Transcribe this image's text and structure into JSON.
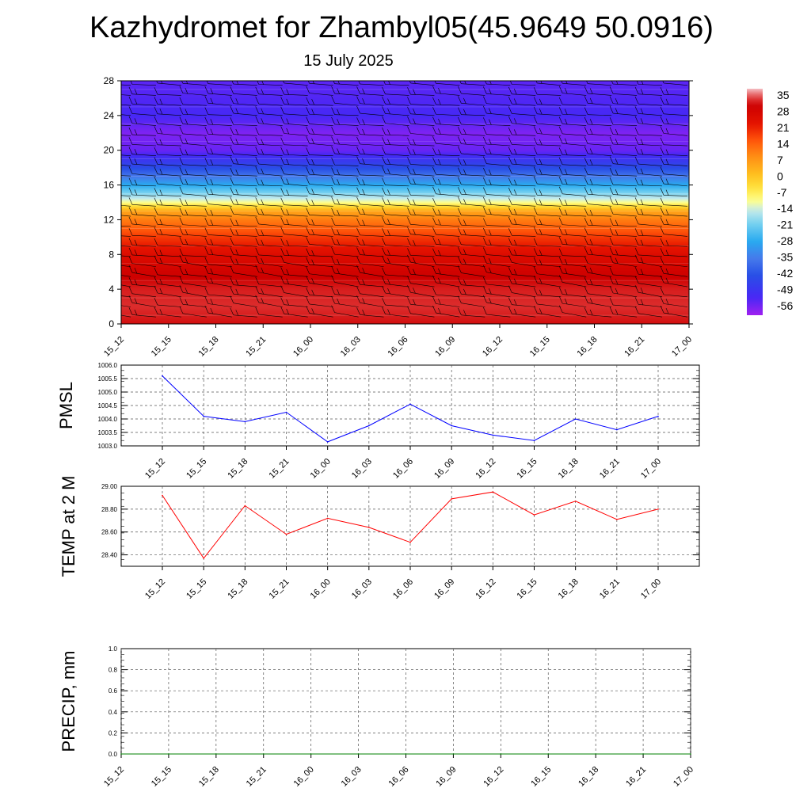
{
  "title": "Kazhydromet for Zhambyl05(45.9649 50.0916)",
  "subtitle": "15 July 2025",
  "chart_data": [
    {
      "type": "heatmap",
      "name": "temperature-cross-section",
      "x_categories": [
        "15_12",
        "15_15",
        "15_18",
        "15_21",
        "16_00",
        "16_03",
        "16_06",
        "16_09",
        "16_12",
        "16_15",
        "16_18",
        "16_21",
        "17_00"
      ],
      "y_ticks": [
        0,
        4,
        8,
        12,
        16,
        20,
        24,
        28
      ],
      "ylim": [
        0,
        28
      ],
      "colorbar_labels": [
        "35",
        "28",
        "21",
        "14",
        "7",
        "0",
        "-7",
        "-14",
        "-21",
        "-28",
        "-35",
        "-42",
        "-49",
        "-56"
      ],
      "colorbar_range": [
        -63,
        38
      ],
      "profile": {
        "levels": [
          0,
          2,
          4,
          6,
          8,
          10,
          12,
          13,
          14,
          16,
          18,
          20,
          22,
          24,
          26,
          28
        ],
        "temps": [
          31,
          33,
          32,
          29,
          25,
          18,
          10,
          4,
          -12,
          -30,
          -46,
          -58,
          -60,
          -55,
          -56,
          -57
        ]
      },
      "wind_barbs": "shown"
    },
    {
      "type": "line",
      "name": "pmsl",
      "ylabel": "PMSL",
      "ylim": [
        1003.0,
        1006.0
      ],
      "yticks": [
        "1003.0",
        "1003.5",
        "1004.0",
        "1004.5",
        "1005.0",
        "1005.5",
        "1006.0"
      ],
      "x": [
        "15_12",
        "15_15",
        "15_18",
        "15_21",
        "16_00",
        "16_03",
        "16_06",
        "16_09",
        "16_12",
        "16_15",
        "16_18",
        "16_21",
        "17_00"
      ],
      "values": [
        1005.6,
        1004.1,
        1003.9,
        1004.25,
        1003.15,
        1003.75,
        1004.55,
        1003.75,
        1003.4,
        1003.2,
        1004.0,
        1003.6,
        1004.1
      ],
      "color": "#0000ff"
    },
    {
      "type": "line",
      "name": "temp2m",
      "ylabel": "TEMP at 2 M",
      "ylim": [
        28.3,
        29.0
      ],
      "yticks": [
        "28.40",
        "28.60",
        "28.80",
        "29.00"
      ],
      "x": [
        "15_12",
        "15_15",
        "15_18",
        "15_21",
        "16_00",
        "16_03",
        "16_06",
        "16_09",
        "16_12",
        "16_15",
        "16_18",
        "16_21",
        "17_00"
      ],
      "values": [
        28.92,
        28.37,
        28.83,
        28.58,
        28.72,
        28.64,
        28.51,
        28.89,
        28.95,
        28.75,
        28.87,
        28.71,
        28.8
      ],
      "color": "#ff0000"
    },
    {
      "type": "line",
      "name": "precip",
      "ylabel": "PRECIP, mm",
      "ylim": [
        0.0,
        1.0
      ],
      "yticks": [
        "0.0",
        "0.2",
        "0.4",
        "0.6",
        "0.8",
        "1.0"
      ],
      "x": [
        "15_12",
        "15_15",
        "15_18",
        "15_21",
        "16_00",
        "16_03",
        "16_06",
        "16_09",
        "16_12",
        "16_15",
        "16_18",
        "16_21",
        "17_00"
      ],
      "values": [
        0,
        0,
        0,
        0,
        0,
        0,
        0,
        0,
        0,
        0,
        0,
        0,
        0
      ],
      "color": "#008000"
    }
  ]
}
